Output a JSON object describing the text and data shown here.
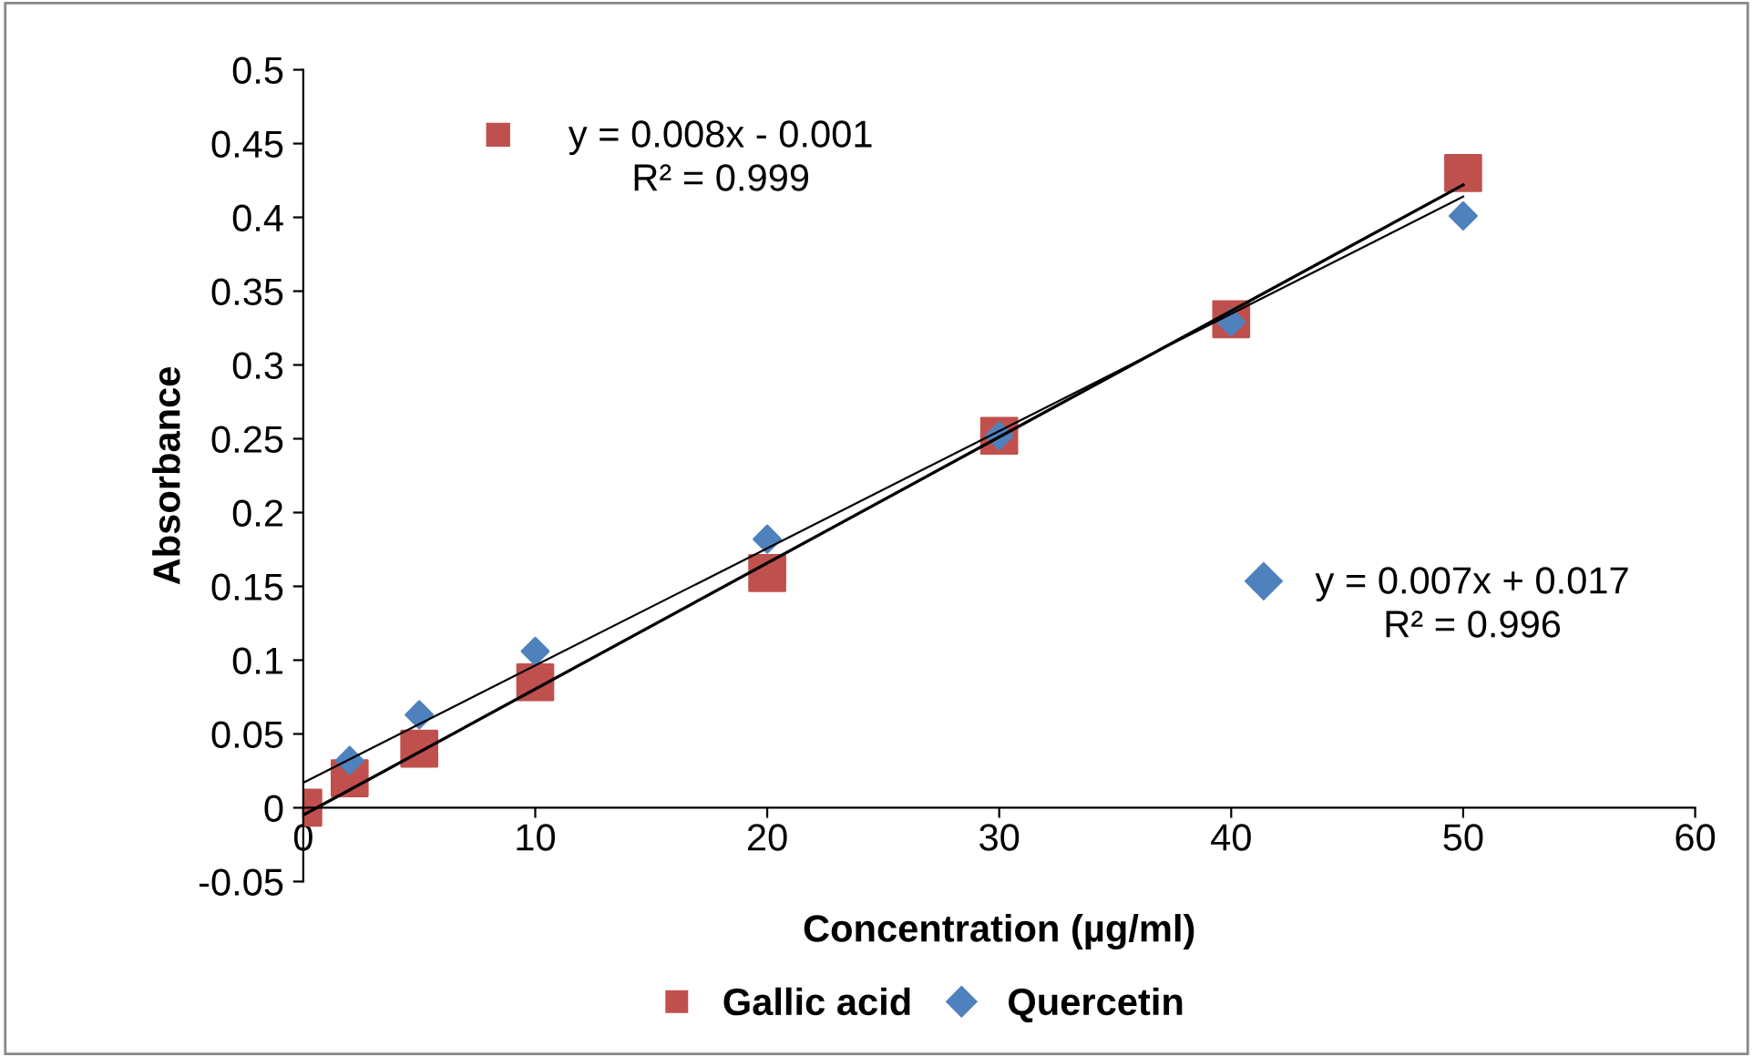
{
  "chart_data": {
    "type": "scatter",
    "xlabel": "Concentration (µg/ml)",
    "ylabel": "Absorbance",
    "xlim": [
      0,
      60
    ],
    "xticks": [
      0,
      10,
      20,
      30,
      40,
      50,
      60
    ],
    "ylim": [
      -0.05,
      0.5
    ],
    "yticks": [
      -0.05,
      0,
      0.05,
      0.1,
      0.15,
      0.2,
      0.25,
      0.3,
      0.35,
      0.4,
      0.45,
      0.5
    ],
    "grid": false,
    "legend": "bottom",
    "series": [
      {
        "name": "Gallic acid",
        "color": "#c0504d",
        "marker": "square",
        "x": [
          0,
          2,
          5,
          10,
          20,
          30,
          40,
          50
        ],
        "values": [
          0,
          0.02,
          0.04,
          0.085,
          0.159,
          0.252,
          0.331,
          0.43
        ]
      },
      {
        "name": "Quercetin",
        "color": "#4f81bd",
        "marker": "diamond",
        "x": [
          2,
          5,
          10,
          20,
          30,
          40,
          50
        ],
        "values": [
          0.032,
          0.063,
          0.106,
          0.182,
          0.252,
          0.329,
          0.401
        ]
      },
      {
        "type": "line",
        "color": "#000000",
        "x": [
          0,
          50
        ],
        "values": [
          -0.005,
          0.422
        ]
      },
      {
        "type": "line",
        "color": "#000000",
        "x": [
          0,
          50
        ],
        "values": [
          0.017,
          0.414
        ]
      }
    ],
    "annotations": [
      "y = 0.008x - 0.001\nR² = 0.999",
      "y = 0.007x + 0.017\nR² = 0.996"
    ]
  }
}
